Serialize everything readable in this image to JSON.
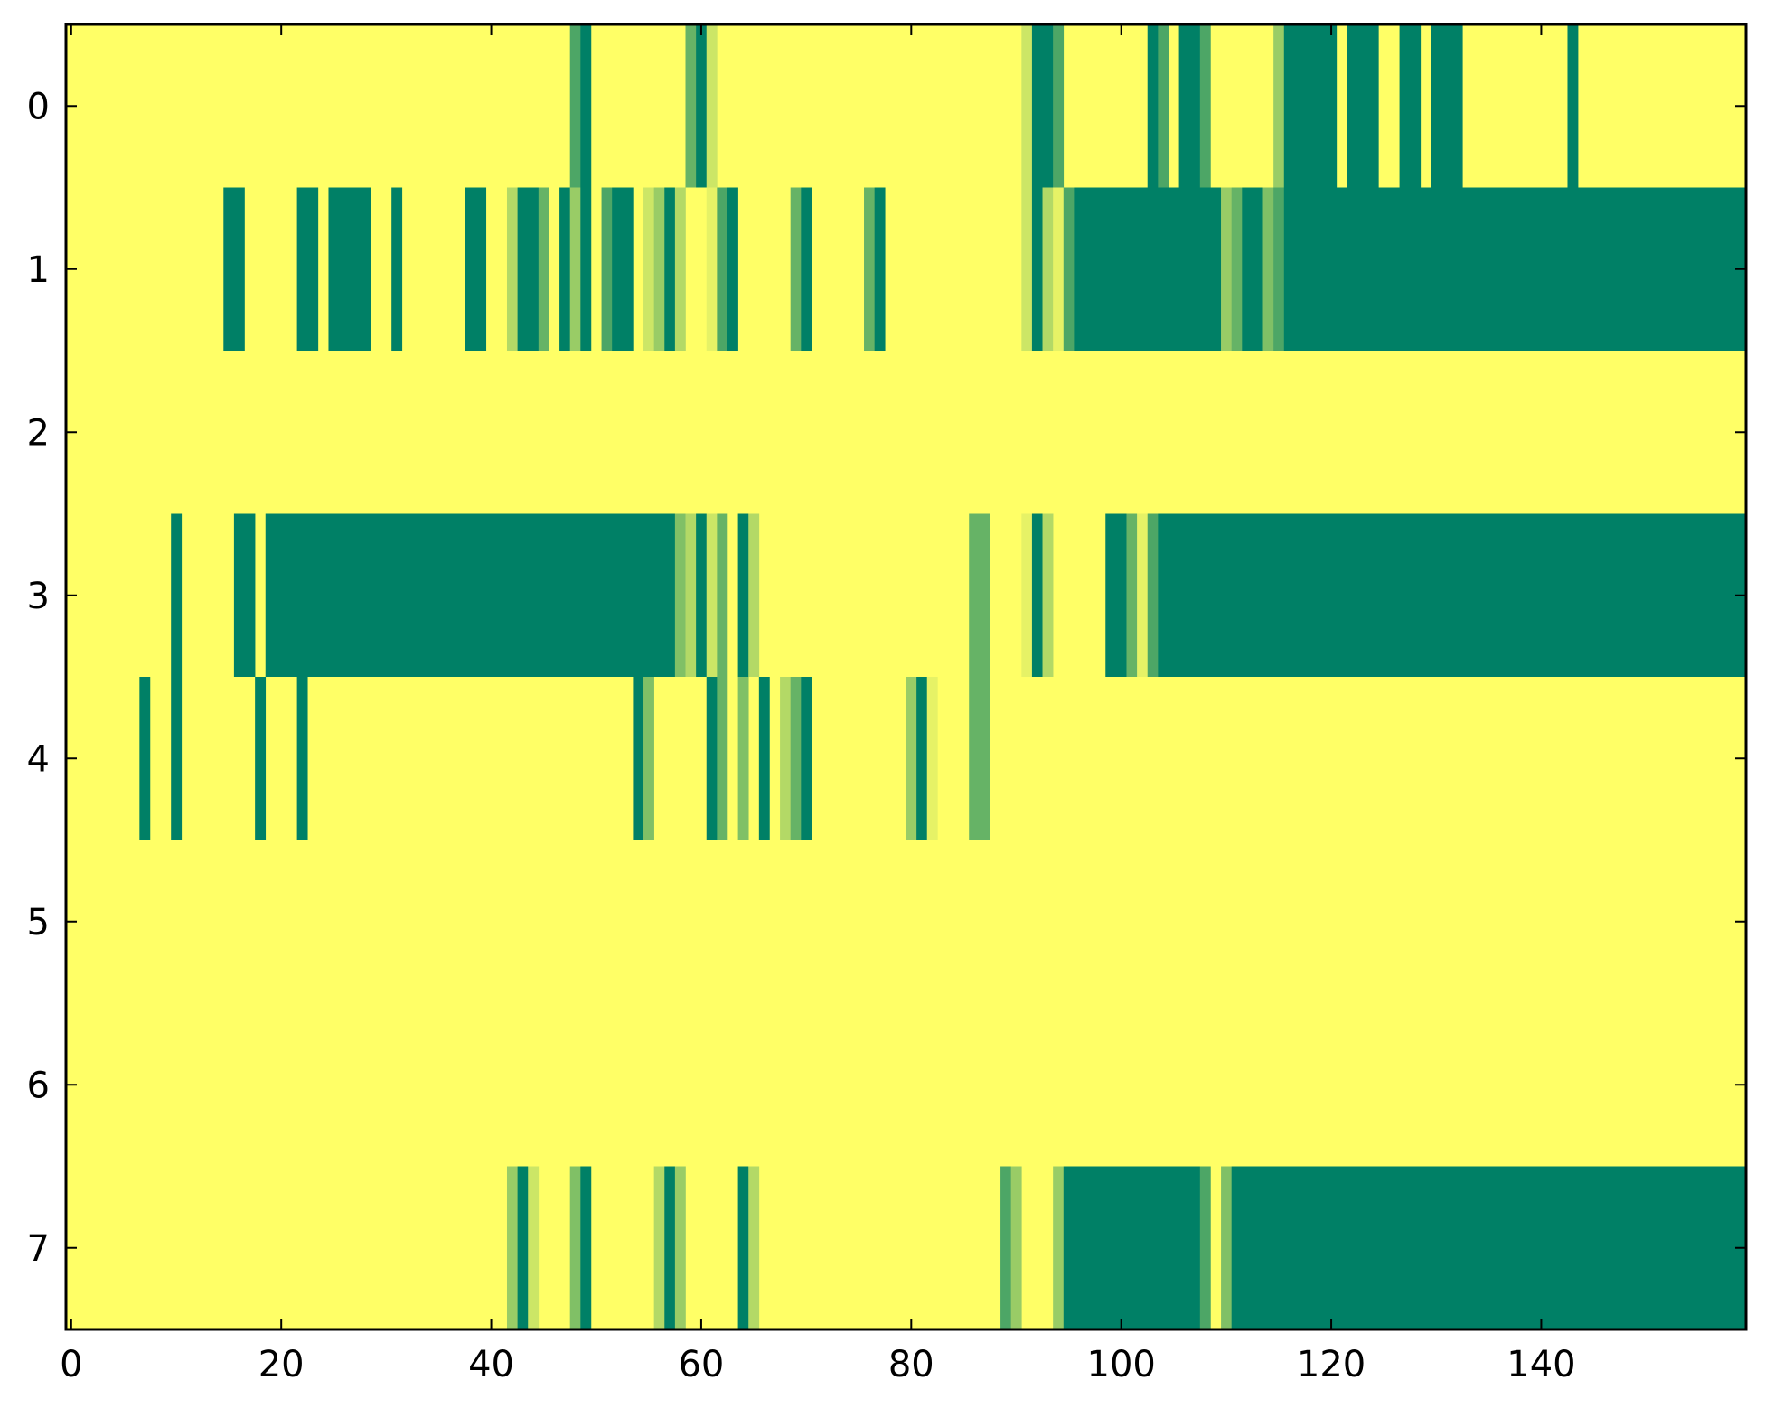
{
  "chart_data": {
    "type": "heatmap",
    "title": "",
    "xlabel": "",
    "ylabel": "",
    "xlim": [
      -0.5,
      159.5
    ],
    "ylim": [
      7.5,
      -0.5
    ],
    "colormap": "summer",
    "colors": {
      "low": "#008066",
      "mid_low": "#55aa66",
      "mid_high": "#aad466",
      "high": "#ffff66"
    },
    "x_ticks": [
      0,
      20,
      40,
      60,
      80,
      100,
      120,
      140
    ],
    "x_tick_labels": [
      "0",
      "20",
      "40",
      "60",
      "80",
      "100",
      "120",
      "140"
    ],
    "y_ticks": [
      0,
      1,
      2,
      3,
      4,
      5,
      6,
      7
    ],
    "y_tick_labels": [
      "0",
      "1",
      "2",
      "3",
      "4",
      "5",
      "6",
      "7"
    ],
    "n_columns": 160,
    "rows": [
      {
        "row": 0,
        "default": 1.0,
        "segments": [
          [
            48,
            48,
            0.3
          ],
          [
            49,
            49,
            0.0
          ],
          [
            59,
            59,
            0.4
          ],
          [
            60,
            60,
            0.0
          ],
          [
            61,
            61,
            0.8
          ],
          [
            91,
            91,
            0.8
          ],
          [
            92,
            93,
            0.0
          ],
          [
            94,
            94,
            0.3
          ],
          [
            103,
            103,
            0.0
          ],
          [
            104,
            104,
            0.3
          ],
          [
            106,
            107,
            0.0
          ],
          [
            108,
            108,
            0.3
          ],
          [
            115,
            115,
            0.6
          ],
          [
            116,
            120,
            0.0
          ],
          [
            122,
            124,
            0.0
          ],
          [
            127,
            128,
            0.0
          ],
          [
            130,
            132,
            0.0
          ],
          [
            143,
            143,
            0.0
          ]
        ]
      },
      {
        "row": 1,
        "default": 1.0,
        "segments": [
          [
            15,
            16,
            0.0
          ],
          [
            22,
            23,
            0.0
          ],
          [
            25,
            28,
            0.0
          ],
          [
            31,
            31,
            0.0
          ],
          [
            38,
            39,
            0.0
          ],
          [
            42,
            42,
            0.7
          ],
          [
            43,
            44,
            0.0
          ],
          [
            45,
            45,
            0.4
          ],
          [
            47,
            47,
            0.0
          ],
          [
            48,
            48,
            0.6
          ],
          [
            49,
            49,
            0.0
          ],
          [
            51,
            51,
            0.3
          ],
          [
            52,
            53,
            0.0
          ],
          [
            55,
            55,
            0.8
          ],
          [
            56,
            56,
            0.6
          ],
          [
            57,
            57,
            0.0
          ],
          [
            58,
            58,
            0.7
          ],
          [
            61,
            61,
            0.9
          ],
          [
            62,
            62,
            0.3
          ],
          [
            63,
            63,
            0.0
          ],
          [
            69,
            69,
            0.4
          ],
          [
            70,
            70,
            0.0
          ],
          [
            76,
            76,
            0.4
          ],
          [
            77,
            77,
            0.0
          ],
          [
            91,
            91,
            0.8
          ],
          [
            92,
            92,
            0.0
          ],
          [
            93,
            93,
            0.7
          ],
          [
            94,
            94,
            0.9
          ],
          [
            95,
            95,
            0.3
          ],
          [
            96,
            109,
            0.0
          ],
          [
            110,
            110,
            0.6
          ],
          [
            111,
            111,
            0.4
          ],
          [
            112,
            113,
            0.0
          ],
          [
            114,
            114,
            0.5
          ],
          [
            115,
            115,
            0.3
          ],
          [
            116,
            159,
            0.0
          ]
        ]
      },
      {
        "row": 2,
        "default": 1.0,
        "segments": []
      },
      {
        "row": 3,
        "default": 1.0,
        "segments": [
          [
            10,
            10,
            0.0
          ],
          [
            16,
            17,
            0.0
          ],
          [
            19,
            57,
            0.0
          ],
          [
            58,
            58,
            0.5
          ],
          [
            59,
            59,
            0.7
          ],
          [
            60,
            60,
            0.0
          ],
          [
            61,
            61,
            0.8
          ],
          [
            62,
            62,
            0.4
          ],
          [
            64,
            64,
            0.0
          ],
          [
            65,
            65,
            0.7
          ],
          [
            86,
            87,
            0.4
          ],
          [
            91,
            91,
            0.9
          ],
          [
            92,
            92,
            0.0
          ],
          [
            93,
            93,
            0.7
          ],
          [
            99,
            100,
            0.0
          ],
          [
            101,
            101,
            0.4
          ],
          [
            102,
            102,
            0.9
          ],
          [
            103,
            103,
            0.3
          ],
          [
            104,
            159,
            0.0
          ]
        ]
      },
      {
        "row": 4,
        "default": 1.0,
        "segments": [
          [
            7,
            7,
            0.0
          ],
          [
            10,
            10,
            0.0
          ],
          [
            18,
            18,
            0.0
          ],
          [
            22,
            22,
            0.0
          ],
          [
            54,
            54,
            0.0
          ],
          [
            55,
            55,
            0.5
          ],
          [
            61,
            61,
            0.0
          ],
          [
            62,
            62,
            0.4
          ],
          [
            64,
            64,
            0.5
          ],
          [
            66,
            66,
            0.0
          ],
          [
            68,
            68,
            0.7
          ],
          [
            69,
            69,
            0.4
          ],
          [
            70,
            70,
            0.0
          ],
          [
            80,
            80,
            0.6
          ],
          [
            81,
            81,
            0.0
          ],
          [
            82,
            82,
            0.9
          ],
          [
            86,
            87,
            0.4
          ]
        ]
      },
      {
        "row": 5,
        "default": 1.0,
        "segments": []
      },
      {
        "row": 6,
        "default": 1.0,
        "segments": []
      },
      {
        "row": 7,
        "default": 1.0,
        "segments": [
          [
            42,
            42,
            0.6
          ],
          [
            43,
            43,
            0.0
          ],
          [
            44,
            44,
            0.8
          ],
          [
            48,
            48,
            0.5
          ],
          [
            49,
            49,
            0.0
          ],
          [
            56,
            56,
            0.7
          ],
          [
            57,
            57,
            0.0
          ],
          [
            58,
            58,
            0.6
          ],
          [
            64,
            64,
            0.0
          ],
          [
            65,
            65,
            0.7
          ],
          [
            89,
            89,
            0.3
          ],
          [
            90,
            90,
            0.6
          ],
          [
            94,
            94,
            0.6
          ],
          [
            95,
            107,
            0.0
          ],
          [
            108,
            108,
            0.3
          ],
          [
            110,
            110,
            0.5
          ],
          [
            111,
            159,
            0.0
          ]
        ]
      }
    ]
  }
}
